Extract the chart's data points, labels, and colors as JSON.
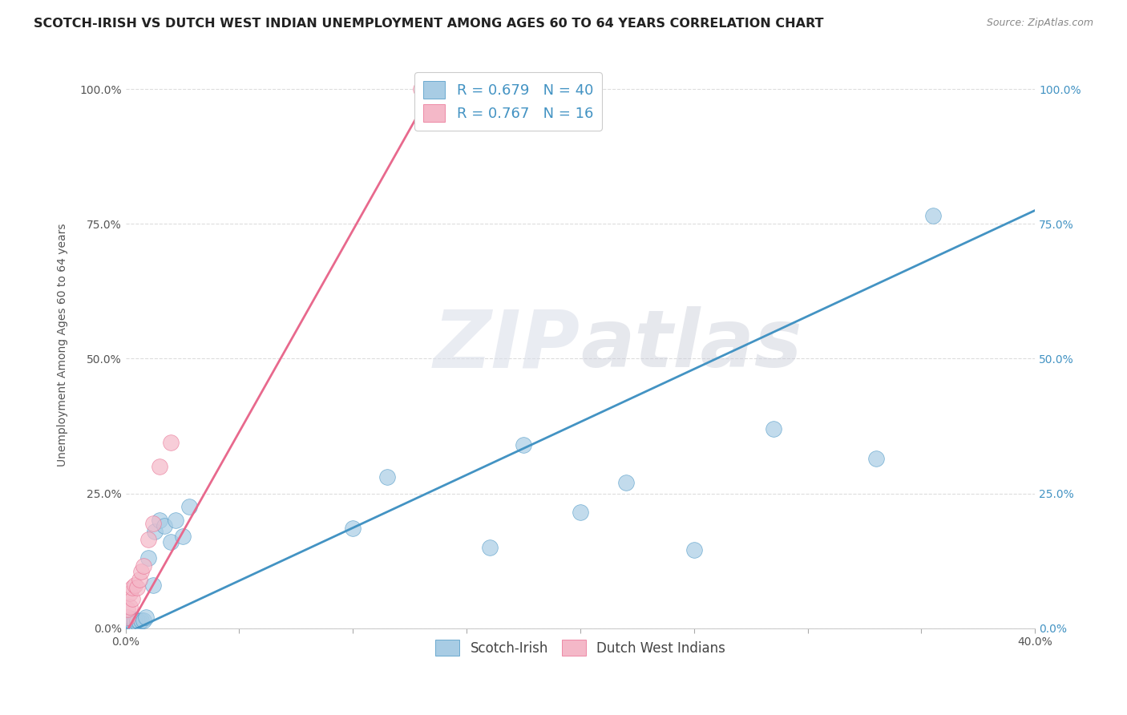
{
  "title": "SCOTCH-IRISH VS DUTCH WEST INDIAN UNEMPLOYMENT AMONG AGES 60 TO 64 YEARS CORRELATION CHART",
  "source": "Source: ZipAtlas.com",
  "ylabel": "Unemployment Among Ages 60 to 64 years",
  "watermark_zip": "ZIP",
  "watermark_atlas": "atlas",
  "xmin": 0.0,
  "xmax": 0.4,
  "ymin": 0.0,
  "ymax": 1.05,
  "xticks": [
    0.0,
    0.05,
    0.1,
    0.15,
    0.2,
    0.25,
    0.3,
    0.35,
    0.4
  ],
  "xtick_labels_show": [
    "0.0%",
    "",
    "",
    "",
    "",
    "",
    "",
    "",
    "40.0%"
  ],
  "yticks": [
    0.0,
    0.25,
    0.5,
    0.75,
    1.0
  ],
  "ytick_labels": [
    "0.0%",
    "25.0%",
    "50.0%",
    "75.0%",
    "100.0%"
  ],
  "blue_color": "#a8cce4",
  "pink_color": "#f4b8c8",
  "blue_line_color": "#4393c3",
  "pink_line_color": "#e8698d",
  "blue_R": 0.679,
  "blue_N": 40,
  "pink_R": 0.767,
  "pink_N": 16,
  "legend_label_blue": "Scotch-Irish",
  "legend_label_pink": "Dutch West Indians",
  "background_color": "#ffffff",
  "grid_color": "#dddddd",
  "title_fontsize": 11.5,
  "axis_label_fontsize": 10,
  "tick_fontsize": 10,
  "tick_color_y_left": "#555555",
  "tick_color_y_right": "#4393c3",
  "tick_color_x": "#555555",
  "scotch_x": [
    0.001,
    0.001,
    0.001,
    0.001,
    0.002,
    0.002,
    0.002,
    0.002,
    0.002,
    0.003,
    0.003,
    0.003,
    0.003,
    0.004,
    0.004,
    0.005,
    0.005,
    0.006,
    0.007,
    0.008,
    0.009,
    0.01,
    0.012,
    0.013,
    0.015,
    0.017,
    0.02,
    0.022,
    0.025,
    0.028,
    0.1,
    0.115,
    0.16,
    0.175,
    0.2,
    0.22,
    0.25,
    0.285,
    0.33,
    0.355
  ],
  "scotch_y": [
    0.005,
    0.008,
    0.01,
    0.015,
    0.005,
    0.008,
    0.01,
    0.012,
    0.015,
    0.008,
    0.01,
    0.012,
    0.018,
    0.01,
    0.015,
    0.01,
    0.015,
    0.012,
    0.015,
    0.015,
    0.02,
    0.13,
    0.08,
    0.18,
    0.2,
    0.19,
    0.16,
    0.2,
    0.17,
    0.225,
    0.185,
    0.28,
    0.15,
    0.34,
    0.215,
    0.27,
    0.145,
    0.37,
    0.315,
    0.765
  ],
  "dutch_x": [
    0.001,
    0.001,
    0.002,
    0.002,
    0.003,
    0.003,
    0.004,
    0.005,
    0.006,
    0.007,
    0.008,
    0.01,
    0.012,
    0.015,
    0.02,
    0.13
  ],
  "dutch_y": [
    0.02,
    0.035,
    0.04,
    0.065,
    0.055,
    0.075,
    0.08,
    0.075,
    0.09,
    0.105,
    0.115,
    0.165,
    0.195,
    0.3,
    0.345,
    1.0
  ],
  "blue_line_x0": 0.0,
  "blue_line_x1": 0.4,
  "blue_line_y0": -0.01,
  "blue_line_y1": 0.775,
  "pink_line_x0": 0.0,
  "pink_line_x1": 0.135,
  "pink_line_y0": -0.01,
  "pink_line_y1": 1.0
}
